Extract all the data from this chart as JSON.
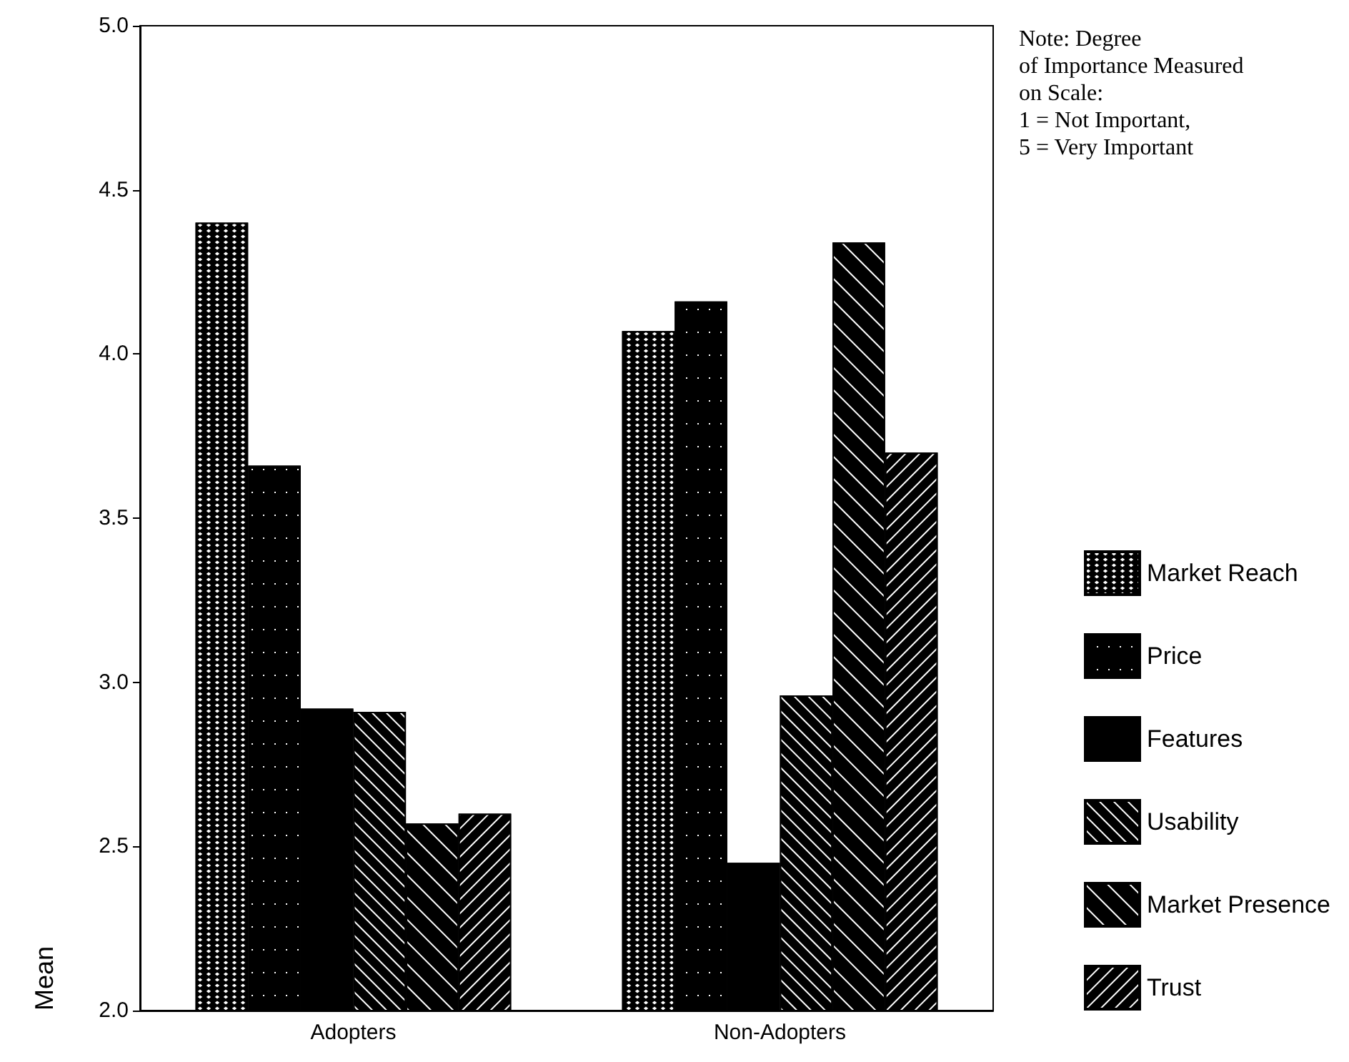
{
  "chart_data": {
    "type": "bar",
    "ylabel": "Mean",
    "categories": [
      "Adopters",
      "Non-Adopters"
    ],
    "series": [
      {
        "name": "Market Reach",
        "color": "#000000",
        "values": [
          4.4,
          4.07
        ]
      },
      {
        "name": "Price",
        "color": "#000000",
        "values": [
          3.66,
          4.16
        ]
      },
      {
        "name": "Features",
        "color": "#000000",
        "values": [
          2.92,
          2.45
        ]
      },
      {
        "name": "Usability",
        "color": "#000000",
        "values": [
          2.91,
          2.96
        ]
      },
      {
        "name": "Market Presence",
        "color": "#000000",
        "values": [
          2.57,
          4.34
        ]
      },
      {
        "name": "Trust",
        "color": "#000000",
        "values": [
          2.6,
          3.7
        ]
      }
    ],
    "ylim": [
      2.0,
      5.0
    ],
    "yticks": [
      {
        "value": 2,
        "label": "2.0"
      },
      {
        "value": 2.5,
        "label": "2.5"
      },
      {
        "value": 3,
        "label": "3.0"
      },
      {
        "value": 3.5,
        "label": "3.5"
      },
      {
        "value": 4,
        "label": "4.0"
      },
      {
        "value": 4.5,
        "label": "4.5"
      },
      {
        "value": 5,
        "label": "5.0"
      }
    ],
    "annotations": [
      "Note: Degree\nof Importance Measured\non Scale:\n1 = Not Important,\n5 = Very Important"
    ],
    "grid": false,
    "legend": "right"
  }
}
